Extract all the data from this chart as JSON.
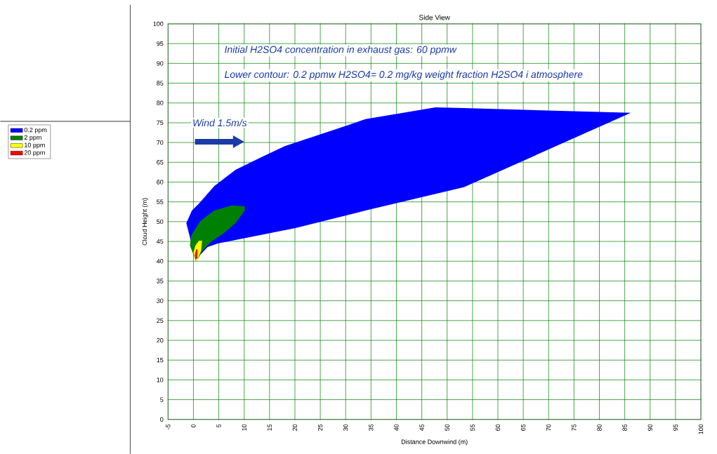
{
  "chart_data": {
    "type": "area",
    "title": "Side View",
    "xlabel": "Distance Downwind (m)",
    "ylabel": "Cloud Height (m)",
    "annotations": [
      "Initial H2SO4 concentration in exhaust gas: 60 ppmw",
      "Lower contour: 0.2 ppmw H2SO4= 0.2 mg/kg weight fraction H2SO4 i atmosphere",
      "Wind 1.5m/s"
    ],
    "xlim": [
      -5,
      100
    ],
    "ylim": [
      0,
      100
    ],
    "xticks": [
      -5,
      0,
      5,
      10,
      15,
      20,
      25,
      30,
      35,
      40,
      45,
      50,
      55,
      60,
      65,
      70,
      75,
      80,
      85,
      90,
      95,
      100
    ],
    "yticks": [
      0,
      5,
      10,
      15,
      20,
      25,
      30,
      35,
      40,
      45,
      50,
      55,
      60,
      65,
      70,
      75,
      80,
      85,
      90,
      95,
      100
    ],
    "grid": true,
    "legend": "left",
    "series": [
      {
        "name": "0.2 ppm",
        "color": "#0000ff",
        "x": [
          0.5,
          -1.4,
          -0.3,
          1.1,
          4.1,
          8.3,
          13.1,
          18,
          27.7,
          33.9,
          47.7,
          53.3,
          86.2,
          53.3,
          33.9,
          20.1,
          7.6,
          4.8,
          2.8,
          1.1
        ],
        "values": [
          40,
          49.6,
          52.8,
          54.6,
          59,
          63.1,
          66.1,
          69.1,
          73.2,
          75.9,
          78.9,
          78.7,
          77.5,
          58.7,
          52.8,
          48.4,
          45.2,
          44.5,
          43.6,
          41.3
        ]
      },
      {
        "name": "2 ppm",
        "color": "#008000",
        "x": [
          0.5,
          -0.7,
          -0.4,
          1.4,
          4.1,
          7.6,
          10.1,
          10.1,
          8.3,
          5.9,
          3.5,
          1.8,
          1
        ],
        "values": [
          40,
          44,
          46.6,
          50.2,
          52.8,
          54.1,
          53.9,
          52.8,
          49.6,
          47,
          44.9,
          42.7,
          40.8
        ]
      },
      {
        "name": "10 ppm",
        "color": "#ffff00",
        "x": [
          0.5,
          0,
          0.4,
          1.1,
          1.7,
          1.5,
          0.8
        ],
        "values": [
          40,
          42.2,
          44,
          45.2,
          45.2,
          42.6,
          40.4
        ]
      },
      {
        "name": "20 ppm",
        "color": "#ff0000",
        "x": [
          0.4,
          0.3,
          0.55,
          0.8,
          0.8
        ],
        "values": [
          40.4,
          41.8,
          43.1,
          42.9,
          40.8
        ]
      }
    ]
  }
}
